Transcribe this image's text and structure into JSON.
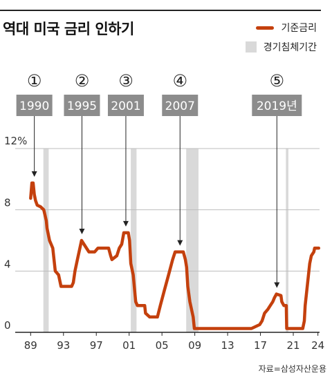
{
  "title": "역대 미국 금리 인하기",
  "legend": {
    "rate_label": "기준금리",
    "recession_label": "경기침체기간"
  },
  "source": "자료=삼성자산운용",
  "colors": {
    "rate_line": "#c4400d",
    "recession": "#d9d9d9",
    "label_box": "#8c8c8c",
    "grid": "#bdbdbd"
  },
  "chart_data": {
    "type": "line",
    "ylim": [
      0,
      12
    ],
    "xlim": [
      1988.3,
      2024.2
    ],
    "y_ticks": [
      {
        "value": 0,
        "label": "0"
      },
      {
        "value": 4,
        "label": "4"
      },
      {
        "value": 8,
        "label": "8"
      },
      {
        "value": 12,
        "label": "12%"
      }
    ],
    "x_ticks": [
      {
        "value": 1989,
        "label": "89"
      },
      {
        "value": 1993,
        "label": "93"
      },
      {
        "value": 1997,
        "label": "97"
      },
      {
        "value": 2001,
        "label": "01"
      },
      {
        "value": 2005,
        "label": "05"
      },
      {
        "value": 2009,
        "label": "09"
      },
      {
        "value": 2013,
        "label": "13"
      },
      {
        "value": 2017,
        "label": "17"
      },
      {
        "value": 2021,
        "label": "21"
      },
      {
        "value": 2024,
        "label": "24"
      }
    ],
    "recessions": [
      {
        "start": 1990.55,
        "end": 1991.2
      },
      {
        "start": 2001.2,
        "end": 2001.9
      },
      {
        "start": 2007.95,
        "end": 2009.45
      },
      {
        "start": 2020.1,
        "end": 2020.4
      }
    ],
    "series": [
      {
        "points": [
          [
            1989.0,
            8.75
          ],
          [
            1989.15,
            9.75
          ],
          [
            1989.3,
            9.75
          ],
          [
            1989.45,
            9.0
          ],
          [
            1989.6,
            8.6
          ],
          [
            1989.8,
            8.3
          ],
          [
            1990.2,
            8.2
          ],
          [
            1990.6,
            8.0
          ],
          [
            1990.9,
            7.3
          ],
          [
            1991.0,
            6.8
          ],
          [
            1991.3,
            6.0
          ],
          [
            1991.7,
            5.5
          ],
          [
            1992.0,
            4.0
          ],
          [
            1992.4,
            3.75
          ],
          [
            1992.7,
            3.0
          ],
          [
            1993.5,
            3.0
          ],
          [
            1994.0,
            3.0
          ],
          [
            1994.2,
            3.25
          ],
          [
            1994.4,
            4.0
          ],
          [
            1994.7,
            4.75
          ],
          [
            1995.0,
            5.5
          ],
          [
            1995.2,
            6.0
          ],
          [
            1995.5,
            5.75
          ],
          [
            1995.8,
            5.5
          ],
          [
            1996.1,
            5.25
          ],
          [
            1996.8,
            5.25
          ],
          [
            1997.2,
            5.5
          ],
          [
            1998.0,
            5.5
          ],
          [
            1998.5,
            5.5
          ],
          [
            1998.75,
            5.0
          ],
          [
            1998.9,
            4.75
          ],
          [
            1999.5,
            5.0
          ],
          [
            1999.8,
            5.5
          ],
          [
            2000.1,
            5.75
          ],
          [
            2000.35,
            6.5
          ],
          [
            2000.9,
            6.5
          ],
          [
            2001.05,
            6.0
          ],
          [
            2001.2,
            4.5
          ],
          [
            2001.5,
            3.75
          ],
          [
            2001.8,
            2.0
          ],
          [
            2002.0,
            1.75
          ],
          [
            2002.9,
            1.75
          ],
          [
            2003.0,
            1.25
          ],
          [
            2003.5,
            1.0
          ],
          [
            2004.45,
            1.0
          ],
          [
            2004.8,
            1.75
          ],
          [
            2005.3,
            2.75
          ],
          [
            2005.8,
            3.75
          ],
          [
            2006.3,
            4.75
          ],
          [
            2006.6,
            5.25
          ],
          [
            2007.6,
            5.25
          ],
          [
            2007.85,
            4.75
          ],
          [
            2008.0,
            4.25
          ],
          [
            2008.15,
            3.0
          ],
          [
            2008.4,
            2.0
          ],
          [
            2008.8,
            1.0
          ],
          [
            2008.95,
            0.25
          ],
          [
            2015.9,
            0.25
          ],
          [
            2016.9,
            0.5
          ],
          [
            2017.2,
            0.75
          ],
          [
            2017.5,
            1.25
          ],
          [
            2017.9,
            1.5
          ],
          [
            2018.2,
            1.75
          ],
          [
            2018.5,
            2.0
          ],
          [
            2018.7,
            2.25
          ],
          [
            2018.95,
            2.5
          ],
          [
            2019.5,
            2.4
          ],
          [
            2019.6,
            2.0
          ],
          [
            2019.85,
            1.75
          ],
          [
            2020.15,
            1.75
          ],
          [
            2020.2,
            0.25
          ],
          [
            2022.15,
            0.25
          ],
          [
            2022.35,
            0.75
          ],
          [
            2022.45,
            1.75
          ],
          [
            2022.6,
            2.5
          ],
          [
            2022.75,
            3.25
          ],
          [
            2022.9,
            4.0
          ],
          [
            2023.0,
            4.5
          ],
          [
            2023.2,
            5.0
          ],
          [
            2023.5,
            5.25
          ],
          [
            2023.6,
            5.5
          ],
          [
            2024.1,
            5.5
          ]
        ]
      }
    ],
    "annotations": [
      {
        "number": "①",
        "label": "1990",
        "x": 1989.45,
        "y": 9.75
      },
      {
        "number": "②",
        "label": "1995",
        "x": 1995.25,
        "y": 6.0
      },
      {
        "number": "③",
        "label": "2001",
        "x": 2000.6,
        "y": 6.5
      },
      {
        "number": "④",
        "label": "2007",
        "x": 2007.2,
        "y": 5.25
      },
      {
        "number": "⑤",
        "label": "2019년",
        "x": 2019.0,
        "y": 2.5
      }
    ]
  }
}
